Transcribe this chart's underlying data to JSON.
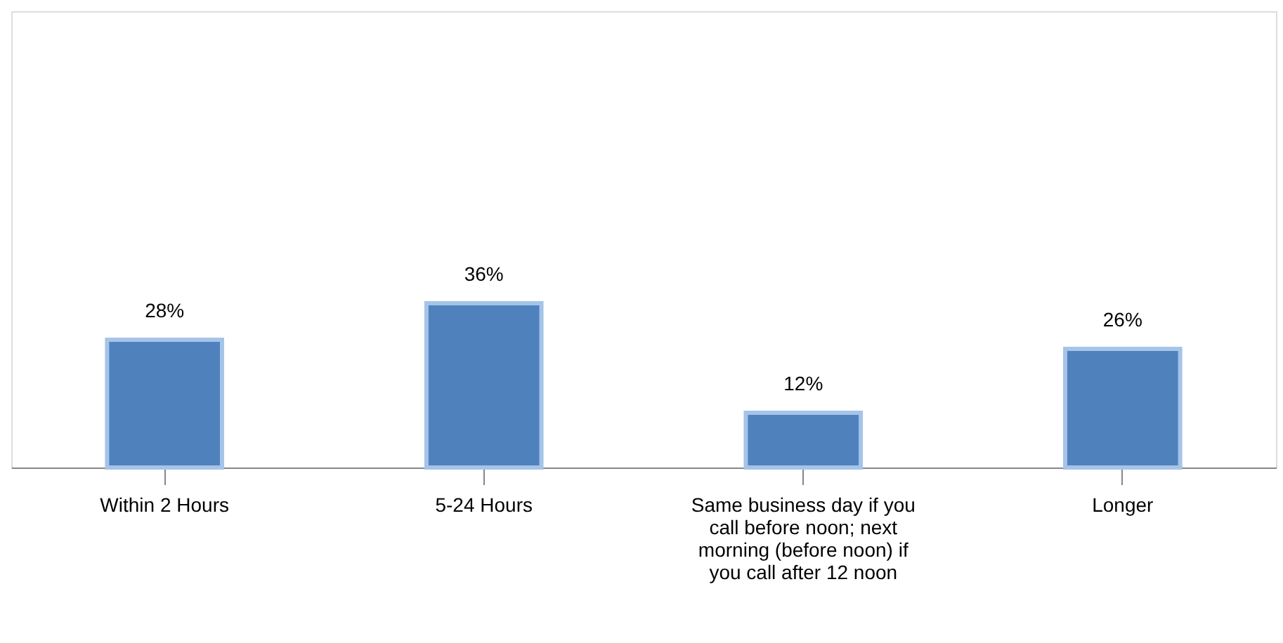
{
  "chart_data": {
    "type": "bar",
    "categories": [
      "Within 2 Hours",
      "5-24 Hours",
      "Same business day if you call before noon; next morning (before noon) if you call after 12 noon",
      "Longer"
    ],
    "values": [
      28,
      36,
      12,
      26
    ],
    "value_labels": [
      "28%",
      "36%",
      "12%",
      "26%"
    ],
    "color": "#4f81bd",
    "ylim": [
      0,
      100
    ],
    "tick_labels": "x",
    "grid": false
  }
}
